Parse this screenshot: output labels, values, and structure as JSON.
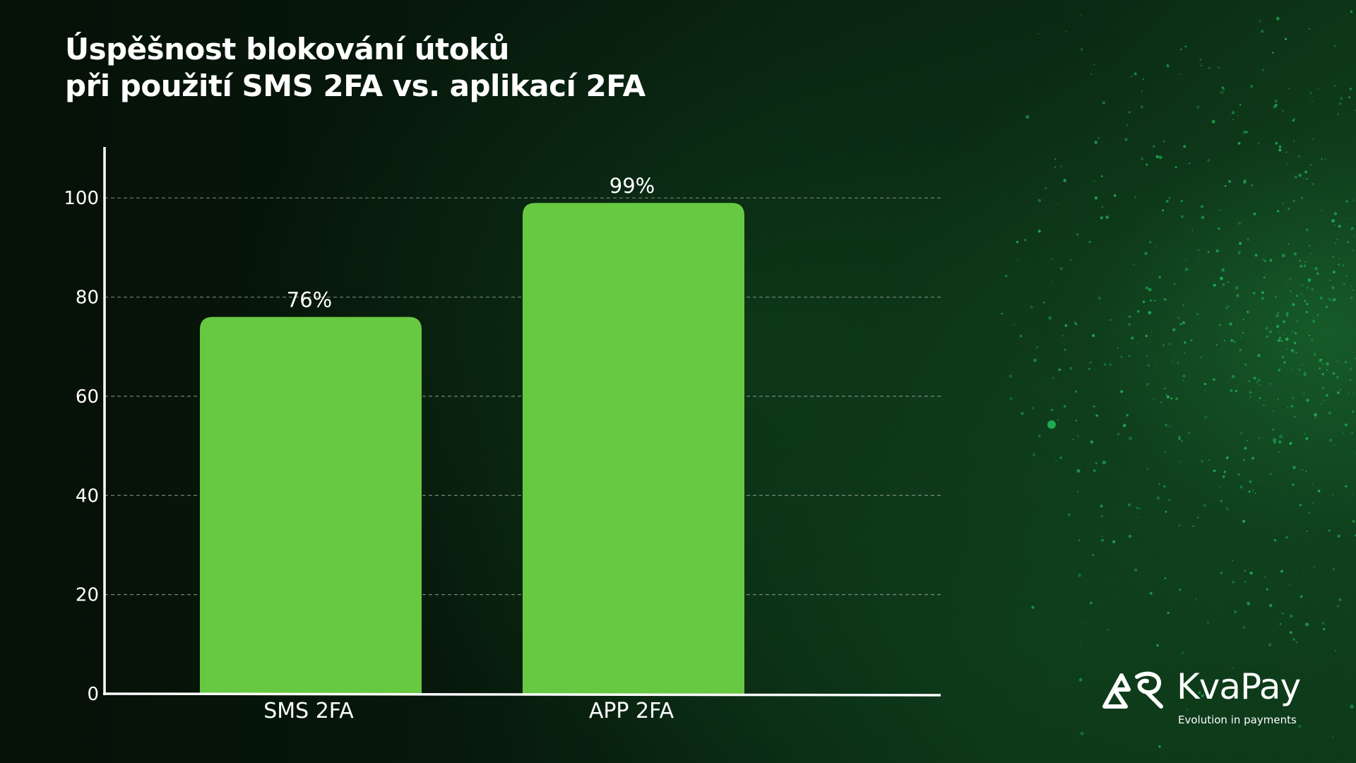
{
  "title": {
    "line1": "Úspěšnost blokování útoků",
    "line2": "při použití SMS 2FA vs. aplikací 2FA"
  },
  "chart_data": {
    "type": "bar",
    "title": "Úspěšnost blokování útoků při použití SMS 2FA vs. aplikací 2FA",
    "xlabel": "",
    "ylabel": "",
    "categories": [
      "SMS 2FA",
      "APP 2FA"
    ],
    "values": [
      76,
      99
    ],
    "data_labels": [
      "76%",
      "99%"
    ],
    "yticks": [
      0,
      20,
      40,
      60,
      80,
      100
    ],
    "ylim": [
      0,
      110
    ],
    "grid": true,
    "bar_color": "#67c942"
  },
  "brand": {
    "name": "KvaPay",
    "tagline": "Evolution in payments",
    "logo_icon": "kvapay-logo-icon"
  },
  "colors": {
    "text": "#ffffff",
    "bar": "#67c942",
    "grid": "#9aa79c",
    "accent_dots": "#22c55e"
  }
}
